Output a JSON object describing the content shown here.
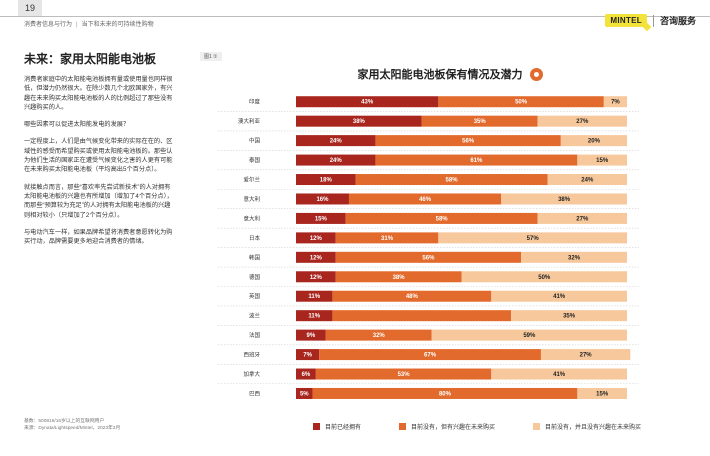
{
  "header": {
    "page_number": "19",
    "breadcrumb_section": "消费者信息与行为",
    "breadcrumb_topic": "当下和未来的可持续性购物",
    "brand_logo": "MINTEL",
    "brand_label": "咨询服务"
  },
  "left": {
    "title": "未来：家用太阳能电池板",
    "paragraphs": [
      "消费者家庭中的太阳能电池板拥有量或使用量也同样很低，但潜力仍然很大。在除少数几个北欧国家外，有兴趣在未来购买太阳能电池板的人的比例超过了那些没有兴趣购买的人。",
      "哪些因素可以促进太阳能发电的发展？",
      "一定程度上，人们是由气候变化带来的实际在在的、区域性的感受而希望购买或使用太阳能电池板的。那些认为他们生活的国家正在遭受气候变化之害的人更有可能在未来购买太阳能电池板（平均高出5个百分点）。",
      "就接触点而言，那些“喜欢率先尝试新技术”的人对拥有太阳能电池板的兴趣也有所增加（增加了4个百分点），而那些“预算较为充足”的人对拥有太阳能电池板的兴趣则相对较小（只增加了2个百分点）。",
      "与电动汽车一样，如果品牌希望将消费者意愿转化为购买行动，品牌需要更多地迎合消费者的情绪。"
    ],
    "source": [
      "基数：500816/16岁以上的互联网用户",
      "来源：Dynata/Lightspeed/Mintel，2023年3月"
    ]
  },
  "figure_label": "图1 ①",
  "colors": {
    "own": "#a8261e",
    "interested": "#e26a2c",
    "not_interested": "#f6c89b",
    "badge": "#e26a2c",
    "logo": "#f2e23a"
  },
  "chart_data": {
    "type": "bar",
    "orientation": "horizontal",
    "stacked": true,
    "title": "家用太阳能电池板保有情况及潜力",
    "categories": [
      "印度",
      "澳大利亚",
      "中国",
      "泰国",
      "爱尔兰",
      "意大利",
      "意大利",
      "日本",
      "韩国",
      "德国",
      "英国",
      "波兰",
      "法国",
      "西班牙",
      "加拿大",
      "巴西"
    ],
    "series": [
      {
        "name": "目前已经拥有",
        "values": [
          43,
          38,
          24,
          24,
          18,
          16,
          15,
          12,
          12,
          12,
          11,
          11,
          9,
          7,
          6,
          5
        ]
      },
      {
        "name": "目前没有，但有兴趣在未来购买",
        "values": [
          50,
          35,
          56,
          61,
          58,
          46,
          58,
          31,
          56,
          38,
          48,
          54,
          32,
          67,
          53,
          80
        ]
      },
      {
        "name": "目前没有，并且没有兴趣在未来购买",
        "values": [
          7,
          27,
          20,
          15,
          24,
          38,
          27,
          57,
          32,
          50,
          41,
          35,
          59,
          27,
          41,
          15
        ]
      }
    ],
    "value_labels": [
      [
        "43%",
        "50%",
        "7%"
      ],
      [
        "38%",
        "35%",
        "27%"
      ],
      [
        "24%",
        "56%",
        "20%"
      ],
      [
        "24%",
        "61%",
        "15%"
      ],
      [
        "18%",
        "58%",
        "24%"
      ],
      [
        "16%",
        "46%",
        "38%"
      ],
      [
        "15%",
        "58%",
        "27%"
      ],
      [
        "12%",
        "31%",
        "57%"
      ],
      [
        "12%",
        "56%",
        "32%"
      ],
      [
        "12%",
        "38%",
        "50%"
      ],
      [
        "11%",
        "48%",
        "41%"
      ],
      [
        "11%",
        "",
        "35%"
      ],
      [
        "9%",
        "32%",
        "59%"
      ],
      [
        "7%",
        "67%",
        "27%"
      ],
      [
        "6%",
        "53%",
        "41%"
      ],
      [
        "5%",
        "80%",
        "15%"
      ]
    ],
    "xlim": [
      0,
      100
    ],
    "grid": false,
    "legend_position": "bottom"
  }
}
